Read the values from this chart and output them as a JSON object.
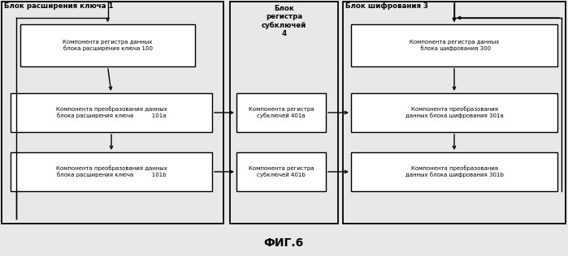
{
  "title": "ФИГ.6",
  "bg_color": "#e8e8e8",
  "block1_label": "Блок расширения ключа 1",
  "block3_label": "Блок шифрования 3",
  "block4_label": "Блок\nрегистра\nсубключей\n4",
  "box100_text": "Компонента регистра данных\nблока расширения ключа 100",
  "box101a_text": "Компонента преобразования данных\nблока расширения ключа          101a",
  "box101b_text": "Компонента преобразования данных\nблока расширения ключа          101b",
  "box401a_text": "Компонента регистра\nсубключей 401a",
  "box401b_text": "Компонента регистра\nсубключей 401b",
  "box300_text": "Компонента регистра данных\n  блока шифрования 300",
  "box301a_text": "Компонента преобразования\nданных блока шифрования 301a",
  "box301b_text": "Компонента преобразования\nданных блока шифрования 301b",
  "lw": 1.0,
  "fs_inner": 5.0,
  "fs_block_title": 6.2,
  "fs_title": 10,
  "text_color": "#000000",
  "box_ec": "#000000",
  "box_fc": "#ffffff"
}
